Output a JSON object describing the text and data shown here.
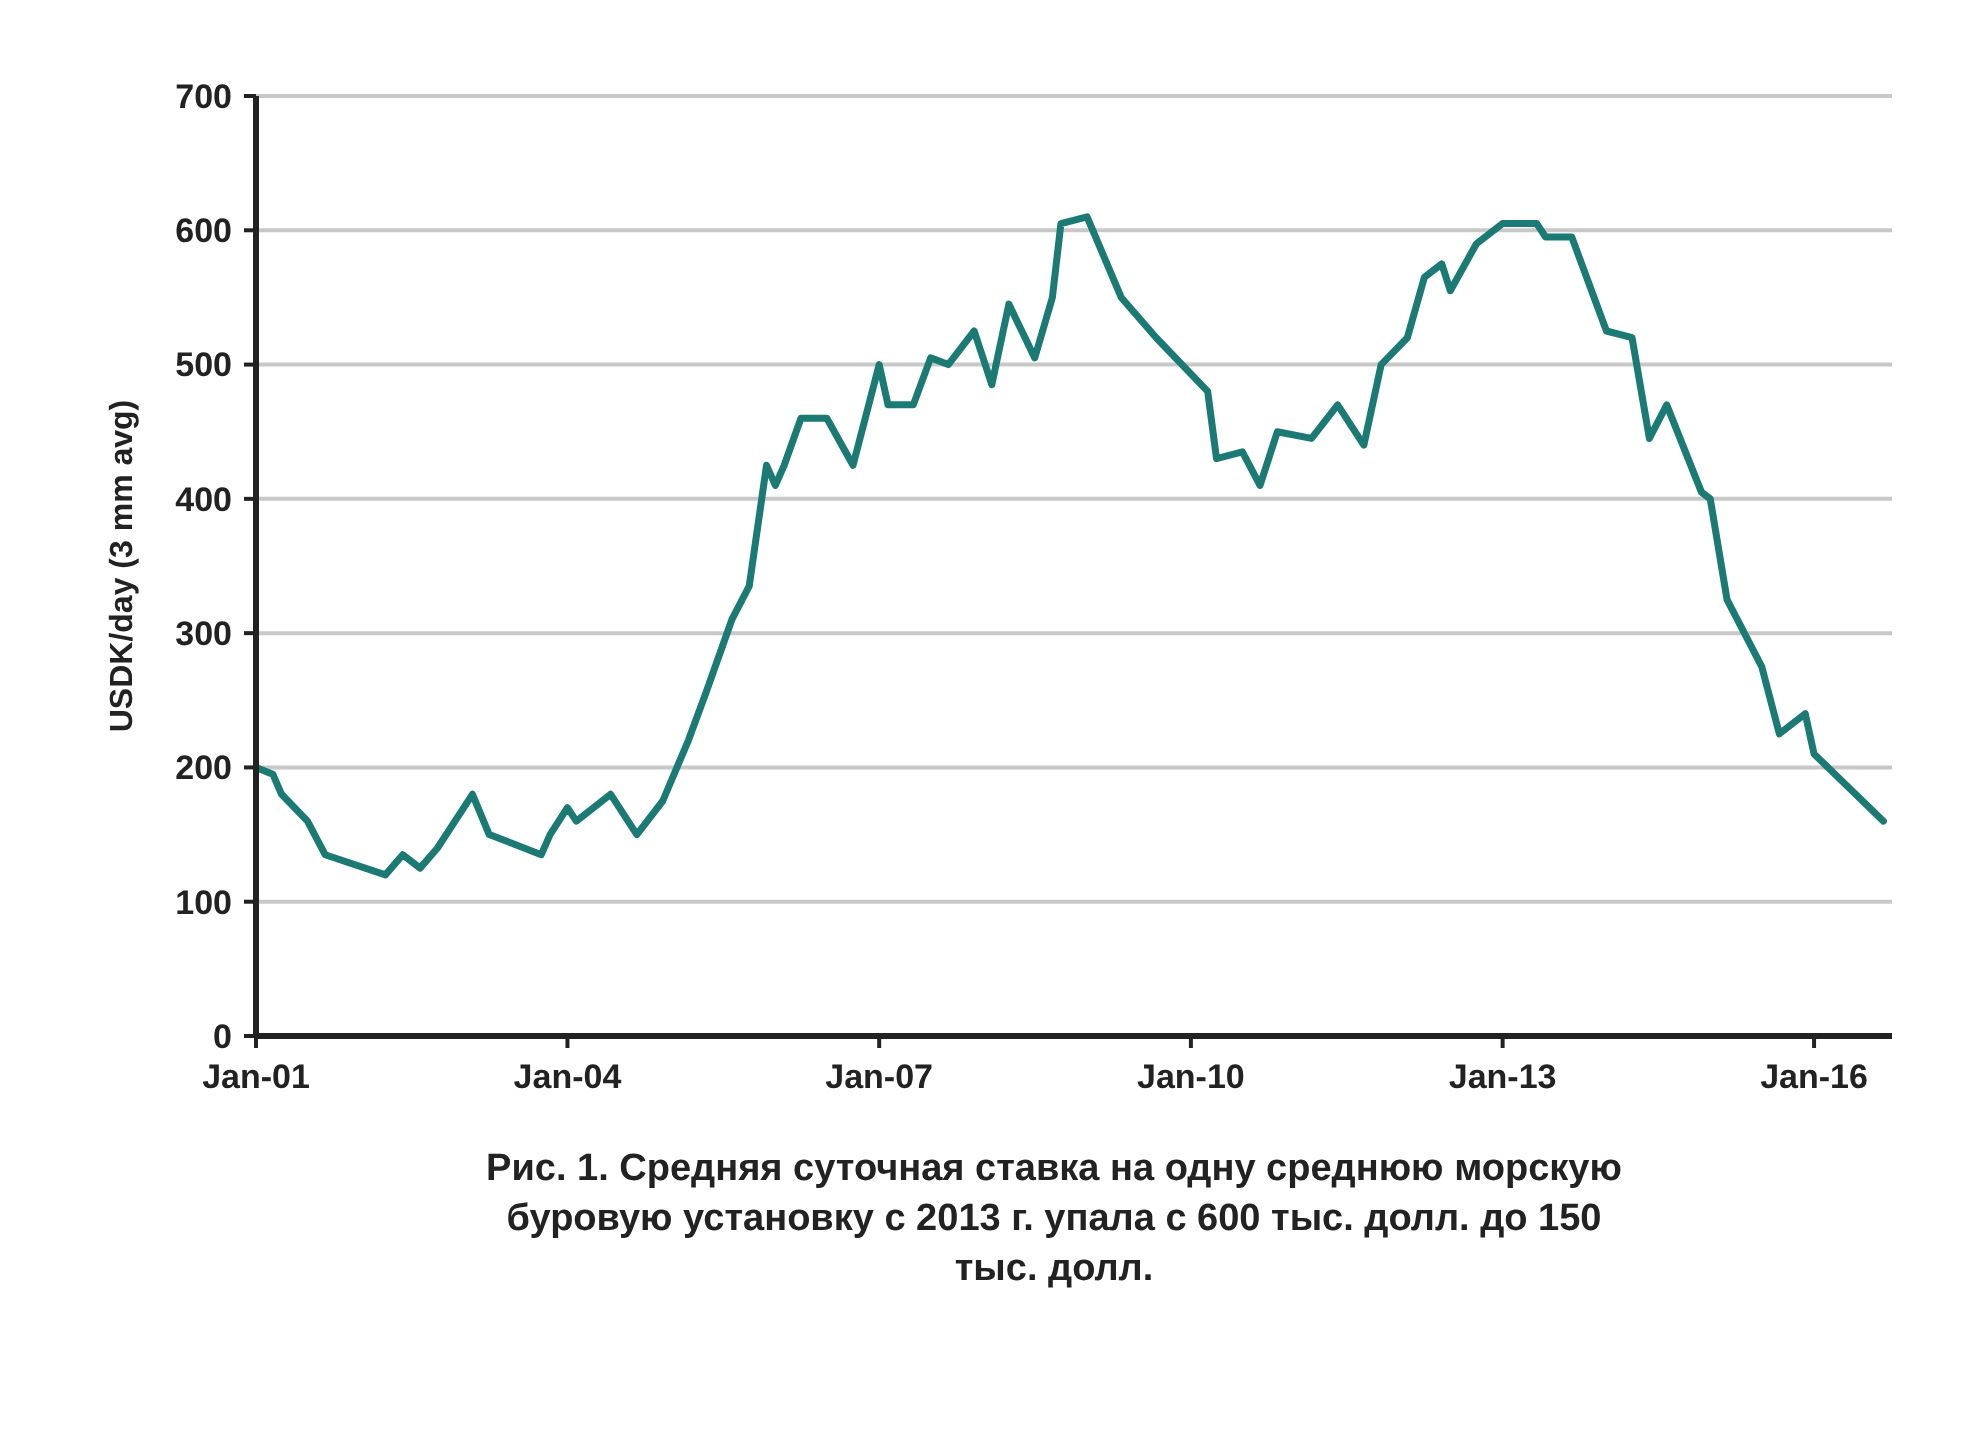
{
  "chart_data": {
    "type": "line",
    "title": "Рис. 1. Средняя суточная ставка на одну среднюю морскую буровую установку с 2013 г. упала с 600 тыс. долл. до 150 тыс. долл.",
    "ylabel": "USDK/day (3 mm avg)",
    "x": [
      "2001-01",
      "2001-03",
      "2001-04",
      "2001-07",
      "2001-09",
      "2002-04",
      "2002-06",
      "2002-08",
      "2002-10",
      "2003-02",
      "2003-04",
      "2003-10",
      "2003-11",
      "2004-01",
      "2004-02",
      "2004-06",
      "2004-09",
      "2004-12",
      "2005-03",
      "2005-05",
      "2005-08",
      "2005-10",
      "2005-12",
      "2006-01",
      "2006-02",
      "2006-04",
      "2006-07",
      "2006-10",
      "2007-01",
      "2007-02",
      "2007-05",
      "2007-07",
      "2007-09",
      "2007-12",
      "2008-02",
      "2008-04",
      "2008-07",
      "2008-09",
      "2008-10",
      "2009-01",
      "2009-05",
      "2009-09",
      "2010-03",
      "2010-04",
      "2010-07",
      "2010-09",
      "2010-11",
      "2011-03",
      "2011-06",
      "2011-09",
      "2011-11",
      "2012-02",
      "2012-04",
      "2012-06",
      "2012-07",
      "2012-10",
      "2013-01",
      "2013-05",
      "2013-06",
      "2013-09",
      "2014-01",
      "2014-04",
      "2014-06",
      "2014-08",
      "2014-12",
      "2015-01",
      "2015-03",
      "2015-07",
      "2015-09",
      "2015-12",
      "2016-01",
      "2016-09"
    ],
    "series": [
      {
        "color": "#1b7a74",
        "values": [
          200,
          195,
          180,
          160,
          135,
          120,
          135,
          125,
          140,
          180,
          150,
          135,
          150,
          170,
          160,
          180,
          150,
          175,
          220,
          255,
          310,
          335,
          425,
          410,
          425,
          460,
          460,
          425,
          500,
          470,
          470,
          505,
          500,
          525,
          485,
          545,
          505,
          550,
          605,
          610,
          550,
          520,
          480,
          430,
          435,
          410,
          450,
          445,
          470,
          440,
          500,
          520,
          565,
          575,
          555,
          590,
          605,
          605,
          595,
          595,
          525,
          520,
          445,
          470,
          405,
          400,
          325,
          275,
          225,
          240,
          210,
          160
        ]
      }
    ],
    "xlim": [
      "2001-01",
      "2016-10"
    ],
    "xticks": [
      {
        "value": "2001-01",
        "label": "Jan-01"
      },
      {
        "value": "2004-01",
        "label": "Jan-04"
      },
      {
        "value": "2007-01",
        "label": "Jan-07"
      },
      {
        "value": "2010-01",
        "label": "Jan-10"
      },
      {
        "value": "2013-01",
        "label": "Jan-13"
      },
      {
        "value": "2016-01",
        "label": "Jan-16"
      }
    ],
    "ylim": [
      0,
      700
    ],
    "yticks": [
      0,
      100,
      200,
      300,
      400,
      500,
      600,
      700
    ],
    "grid": "y",
    "marker": "none",
    "line_style": "solid"
  }
}
